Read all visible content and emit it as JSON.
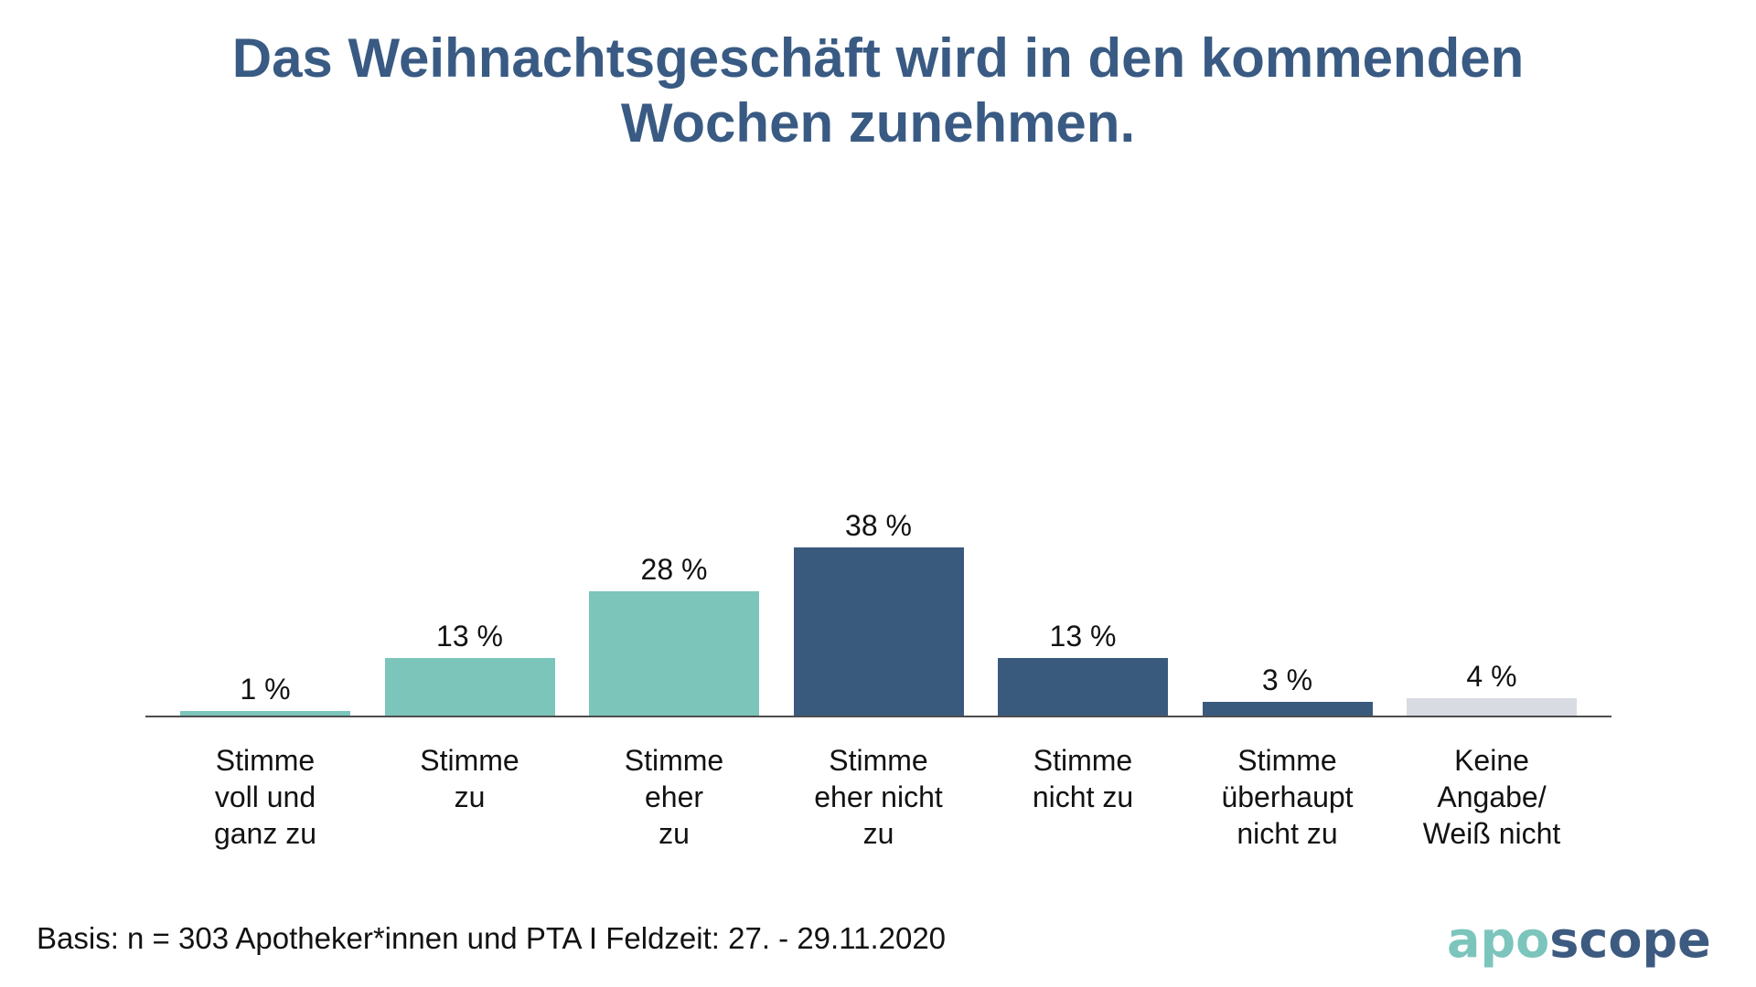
{
  "header": {
    "title_lines": [
      "Das Weihnachtsgeschäft wird in den kommenden",
      "Wochen zunehmen."
    ]
  },
  "chart_data": {
    "type": "bar",
    "title": "Das Weihnachtsgeschäft wird in den kommenden Wochen zunehmen.",
    "categories": [
      "Stimme voll und ganz zu",
      "Stimme zu",
      "Stimme eher zu",
      "Stimme eher nicht zu",
      "Stimme nicht zu",
      "Stimme überhaupt nicht zu",
      "Keine Angabe/Weiß nicht"
    ],
    "categories_display": [
      "Stimme\nvoll und\nganz zu",
      "Stimme\nzu",
      "Stimme\neher\nzu",
      "Stimme\neher nicht\nzu",
      "Stimme\nnicht zu",
      "Stimme\nüberhaupt\nnicht zu",
      "Keine\nAngabe/\nWeiß nicht"
    ],
    "values": [
      1,
      13,
      28,
      38,
      13,
      3,
      4
    ],
    "value_labels": [
      "1 %",
      "13 %",
      "28 %",
      "38 %",
      "13 %",
      "3 %",
      "4 %"
    ],
    "unit": "%",
    "bar_colors": [
      "#7BC5BB",
      "#7BC5BB",
      "#7BC5BB",
      "#3A5A7D",
      "#3A5A7D",
      "#3A5A7D",
      "#D8DBE2"
    ],
    "ylim": [
      0,
      40
    ],
    "grid": false,
    "legend": "none",
    "axis_line_color": "#4D4D4D",
    "title_color": "#395A83"
  },
  "footer": {
    "basis": "Basis: n = 303 Apotheker*innen und PTA I Feldzeit: 27. - 29.11.2020",
    "logo": {
      "text": "aposcope",
      "part1": "apo",
      "part2": "scope",
      "part1_color": "#7CC5BC",
      "part2_color": "#3D5A80"
    }
  }
}
